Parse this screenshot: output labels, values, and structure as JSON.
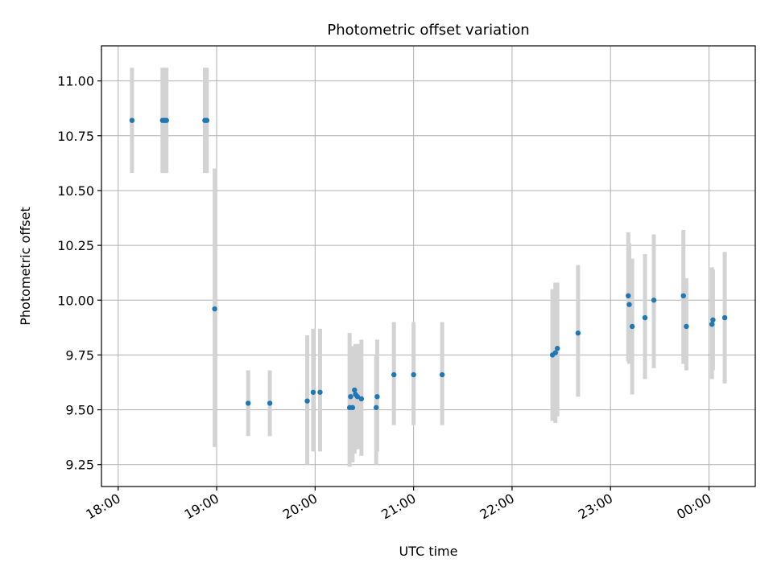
{
  "chart_data": {
    "type": "scatter",
    "title": "Photometric offset variation",
    "xlabel": "UTC time",
    "ylabel": "Photometric offset",
    "x_unit": "UTC hours (values beyond 24 are after midnight)",
    "xlim": [
      17.83,
      24.47
    ],
    "ylim": [
      9.15,
      11.16
    ],
    "xticks": [
      {
        "value": 18,
        "label": "18:00"
      },
      {
        "value": 19,
        "label": "19:00"
      },
      {
        "value": 20,
        "label": "20:00"
      },
      {
        "value": 21,
        "label": "21:00"
      },
      {
        "value": 22,
        "label": "22:00"
      },
      {
        "value": 23,
        "label": "23:00"
      },
      {
        "value": 24,
        "label": "00:00"
      }
    ],
    "yticks": [
      {
        "value": 9.25,
        "label": "9.25"
      },
      {
        "value": 9.5,
        "label": "9.50"
      },
      {
        "value": 9.75,
        "label": "9.75"
      },
      {
        "value": 10.0,
        "label": "10.00"
      },
      {
        "value": 10.25,
        "label": "10.25"
      },
      {
        "value": 10.5,
        "label": "10.50"
      },
      {
        "value": 10.75,
        "label": "10.75"
      },
      {
        "value": 11.0,
        "label": "11.00"
      }
    ],
    "grid": true,
    "point_color": "#1f77b4",
    "errorbar_color": "#d3d3d3",
    "points": [
      {
        "x": 18.14,
        "y": 10.82,
        "ylow": 10.58,
        "yhigh": 11.06
      },
      {
        "x": 18.45,
        "y": 10.82,
        "ylow": 10.58,
        "yhigh": 11.06
      },
      {
        "x": 18.47,
        "y": 10.82,
        "ylow": 10.58,
        "yhigh": 11.06
      },
      {
        "x": 18.49,
        "y": 10.82,
        "ylow": 10.58,
        "yhigh": 11.06
      },
      {
        "x": 18.88,
        "y": 10.82,
        "ylow": 10.58,
        "yhigh": 11.06
      },
      {
        "x": 18.9,
        "y": 10.82,
        "ylow": 10.58,
        "yhigh": 11.06
      },
      {
        "x": 18.98,
        "y": 9.96,
        "ylow": 9.33,
        "yhigh": 10.6
      },
      {
        "x": 19.32,
        "y": 9.53,
        "ylow": 9.38,
        "yhigh": 9.68
      },
      {
        "x": 19.54,
        "y": 9.53,
        "ylow": 9.38,
        "yhigh": 9.68
      },
      {
        "x": 19.92,
        "y": 9.54,
        "ylow": 9.25,
        "yhigh": 9.84
      },
      {
        "x": 19.98,
        "y": 9.58,
        "ylow": 9.31,
        "yhigh": 9.87
      },
      {
        "x": 20.05,
        "y": 9.58,
        "ylow": 9.31,
        "yhigh": 9.87
      },
      {
        "x": 20.35,
        "y": 9.51,
        "ylow": 9.24,
        "yhigh": 9.85
      },
      {
        "x": 20.36,
        "y": 9.56,
        "ylow": 9.26,
        "yhigh": 9.79
      },
      {
        "x": 20.38,
        "y": 9.51,
        "ylow": 9.26,
        "yhigh": 9.79
      },
      {
        "x": 20.4,
        "y": 9.59,
        "ylow": 9.3,
        "yhigh": 9.78
      },
      {
        "x": 20.41,
        "y": 9.57,
        "ylow": 9.32,
        "yhigh": 9.8
      },
      {
        "x": 20.43,
        "y": 9.56,
        "ylow": 9.32,
        "yhigh": 9.8
      },
      {
        "x": 20.47,
        "y": 9.55,
        "ylow": 9.29,
        "yhigh": 9.82
      },
      {
        "x": 20.62,
        "y": 9.51,
        "ylow": 9.25,
        "yhigh": 9.75
      },
      {
        "x": 20.63,
        "y": 9.56,
        "ylow": 9.31,
        "yhigh": 9.82
      },
      {
        "x": 20.8,
        "y": 9.66,
        "ylow": 9.43,
        "yhigh": 9.9
      },
      {
        "x": 21.0,
        "y": 9.66,
        "ylow": 9.43,
        "yhigh": 9.9
      },
      {
        "x": 21.29,
        "y": 9.66,
        "ylow": 9.43,
        "yhigh": 9.9
      },
      {
        "x": 22.41,
        "y": 9.75,
        "ylow": 9.45,
        "yhigh": 10.05
      },
      {
        "x": 22.44,
        "y": 9.76,
        "ylow": 9.44,
        "yhigh": 10.08
      },
      {
        "x": 22.46,
        "y": 9.78,
        "ylow": 9.47,
        "yhigh": 10.08
      },
      {
        "x": 22.67,
        "y": 9.85,
        "ylow": 9.56,
        "yhigh": 10.16
      },
      {
        "x": 23.18,
        "y": 10.02,
        "ylow": 9.72,
        "yhigh": 10.31
      },
      {
        "x": 23.19,
        "y": 9.98,
        "ylow": 9.71,
        "yhigh": 10.26
      },
      {
        "x": 23.22,
        "y": 9.88,
        "ylow": 9.57,
        "yhigh": 10.19
      },
      {
        "x": 23.35,
        "y": 9.92,
        "ylow": 9.64,
        "yhigh": 10.21
      },
      {
        "x": 23.44,
        "y": 10.0,
        "ylow": 9.69,
        "yhigh": 10.3
      },
      {
        "x": 23.74,
        "y": 10.02,
        "ylow": 9.71,
        "yhigh": 10.32
      },
      {
        "x": 23.77,
        "y": 9.88,
        "ylow": 9.68,
        "yhigh": 10.1
      },
      {
        "x": 24.03,
        "y": 9.89,
        "ylow": 9.64,
        "yhigh": 10.15
      },
      {
        "x": 24.04,
        "y": 9.91,
        "ylow": 9.68,
        "yhigh": 10.14
      },
      {
        "x": 24.16,
        "y": 9.92,
        "ylow": 9.62,
        "yhigh": 10.22
      }
    ]
  }
}
